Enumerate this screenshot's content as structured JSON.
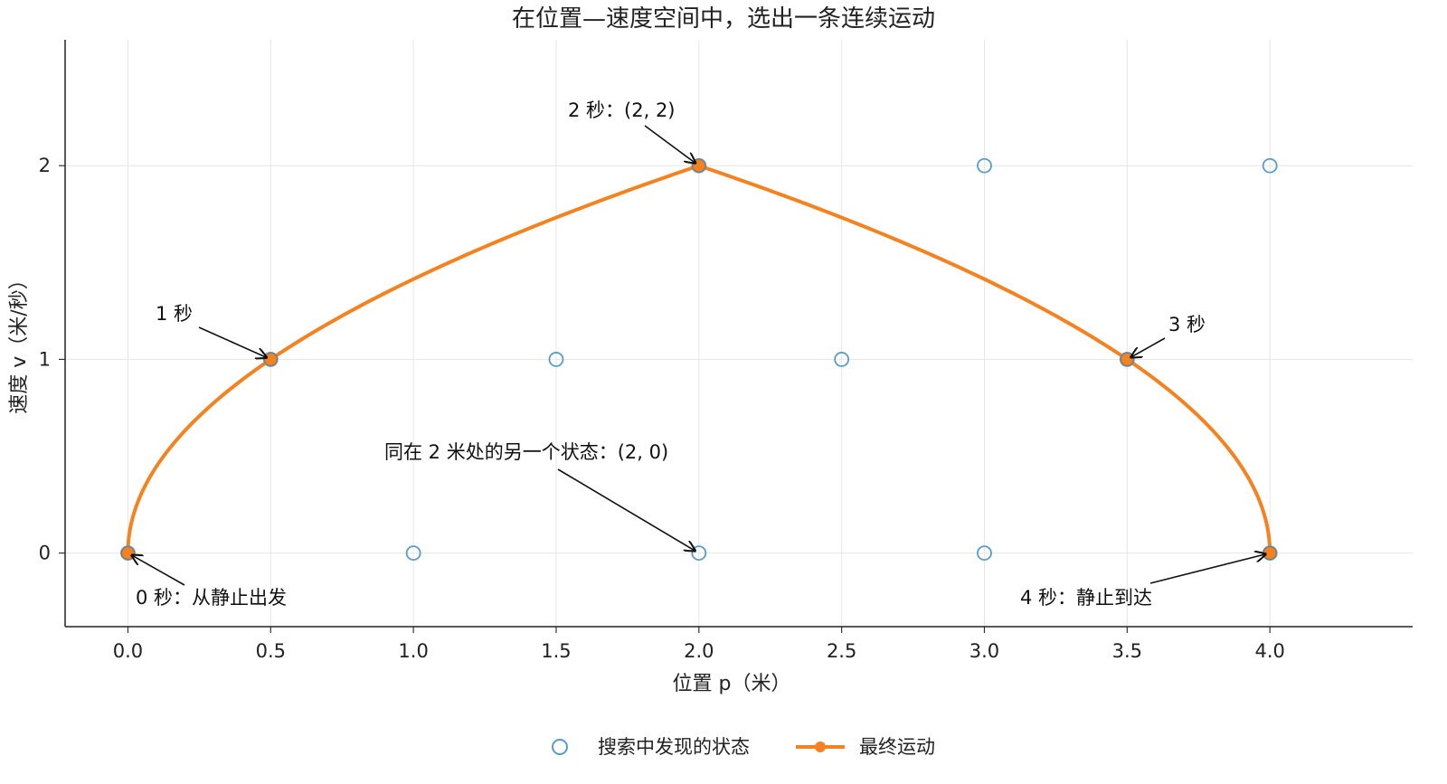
{
  "chart_data": {
    "type": "scatter",
    "title": "在位置—速度空间中，选出一条连续运动",
    "xlabel": "位置 p（米）",
    "ylabel": "速度 v（米/秒）",
    "xlim": [
      -0.22,
      4.5
    ],
    "ylim": [
      -0.38,
      2.65
    ],
    "x_ticks": [
      0.0,
      0.5,
      1.0,
      1.5,
      2.0,
      2.5,
      3.0,
      3.5,
      4.0
    ],
    "x_tick_labels": [
      "0.0",
      "0.5",
      "1.0",
      "1.5",
      "2.0",
      "2.5",
      "3.0",
      "3.5",
      "4.0"
    ],
    "y_ticks": [
      0,
      1,
      2
    ],
    "y_tick_labels": [
      "0",
      "1",
      "2"
    ],
    "grid": true,
    "legend_position": "bottom-center",
    "series": [
      {
        "name": "搜索中发现的状态",
        "marker": "open-circle",
        "color": "#5b9bc8",
        "points": [
          [
            0,
            0
          ],
          [
            1,
            0
          ],
          [
            2,
            0
          ],
          [
            3,
            0
          ],
          [
            4,
            0
          ],
          [
            0.5,
            1
          ],
          [
            1.5,
            1
          ],
          [
            2.5,
            1
          ],
          [
            3.5,
            1
          ],
          [
            2,
            2
          ],
          [
            3,
            2
          ],
          [
            4,
            2
          ]
        ]
      },
      {
        "name": "最终运动",
        "marker": "filled-circle",
        "color": "#f5821f",
        "points": [
          [
            0,
            0
          ],
          [
            0.5,
            1
          ],
          [
            2,
            2
          ],
          [
            3.5,
            1
          ],
          [
            4,
            0
          ]
        ],
        "curve": "accelerate at 1 m/s² for 2 s, then decelerate at 1 m/s² for 2 s"
      }
    ],
    "annotations": [
      {
        "text": "0 秒：从静止出发",
        "target": [
          0,
          0
        ]
      },
      {
        "text": "1 秒",
        "target": [
          0.5,
          1
        ]
      },
      {
        "text": "2 秒：(2, 2)",
        "target": [
          2,
          2
        ]
      },
      {
        "text": "3 秒",
        "target": [
          3.5,
          1
        ]
      },
      {
        "text": "4 秒：静止到达",
        "target": [
          4,
          0
        ]
      },
      {
        "text": "同在 2 米处的另一个状态：(2, 0)",
        "target": [
          2,
          0
        ]
      }
    ]
  }
}
